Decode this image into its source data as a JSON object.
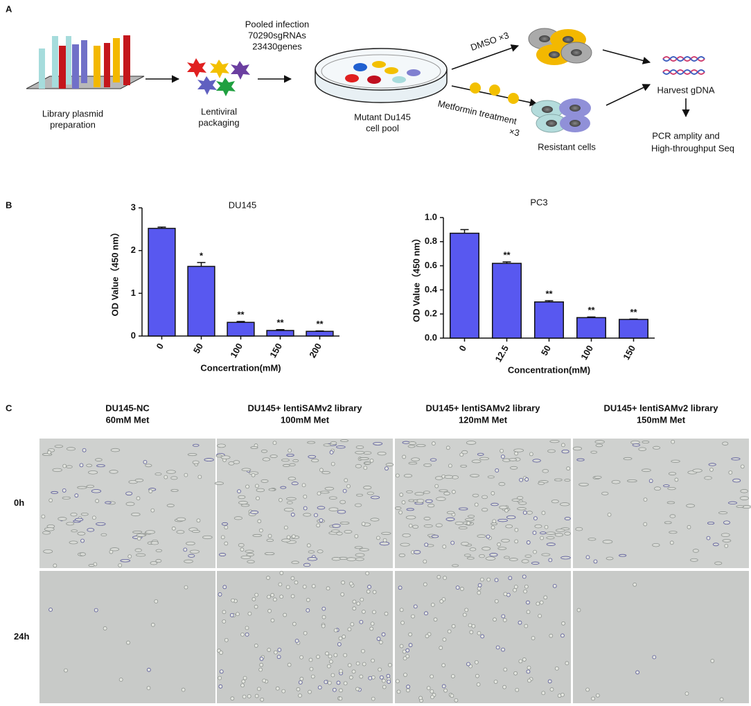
{
  "panel_a": {
    "label": "A",
    "library": [
      "Library plasmid",
      "preparation"
    ],
    "lentiviral": [
      "Lentiviral",
      "packaging"
    ],
    "pooled": [
      "Pooled infection",
      "70290sgRNAs",
      "23430genes"
    ],
    "mutant": [
      "Mutant Du145",
      "cell pool"
    ],
    "dmso": "DMSO ×3",
    "metformin": [
      "Metformin treatment",
      "×3"
    ],
    "resistant": "Resistant cells",
    "harvest": "Harvest gDNA",
    "pcr": [
      "PCR amplity and",
      "High-throughput Seq"
    ]
  },
  "panel_b_label": "B",
  "chart_data": [
    {
      "type": "bar",
      "title": "DU145",
      "x_label": "Concertration(mM)",
      "y_label": "OD Value（450 nm）",
      "categories": [
        "0",
        "50",
        "100",
        "150",
        "200"
      ],
      "values": [
        2.52,
        1.63,
        0.32,
        0.13,
        0.11
      ],
      "errors": [
        0.03,
        0.09,
        0.02,
        0.02,
        0.01
      ],
      "annotations": [
        null,
        "*",
        "**",
        "**",
        "**"
      ],
      "color": "#5858f0",
      "ylim": [
        0,
        3
      ],
      "yticks": [
        0,
        1,
        2,
        3
      ]
    },
    {
      "type": "bar",
      "title": "PC3",
      "x_label": "Concentration(mM)",
      "y_label": "OD Value（450 nm）",
      "categories": [
        "0",
        "12.5",
        "50",
        "100",
        "150"
      ],
      "values": [
        0.87,
        0.62,
        0.3,
        0.17,
        0.155
      ],
      "errors": [
        0.03,
        0.012,
        0.01,
        0.005,
        0.003
      ],
      "annotations": [
        null,
        "**",
        "**",
        "**",
        "**"
      ],
      "color": "#5858f0",
      "ylim": [
        0,
        1.0
      ],
      "yticks": [
        {
          "value": 0,
          "label": "0.0"
        },
        0.2,
        0.4,
        0.6,
        0.8,
        {
          "value": 1.0,
          "label": "1.0"
        }
      ]
    }
  ],
  "panel_c": {
    "label": "C",
    "columns": [
      [
        "DU145-NC",
        "60mM Met"
      ],
      [
        "DU145+ lentiSAMv2 library",
        "100mM Met"
      ],
      [
        "DU145+ lentiSAMv2 library",
        "120mM Met"
      ],
      [
        "DU145+ lentiSAMv2 library",
        "150mM Met"
      ]
    ],
    "rows": [
      "0h",
      "24h"
    ]
  }
}
